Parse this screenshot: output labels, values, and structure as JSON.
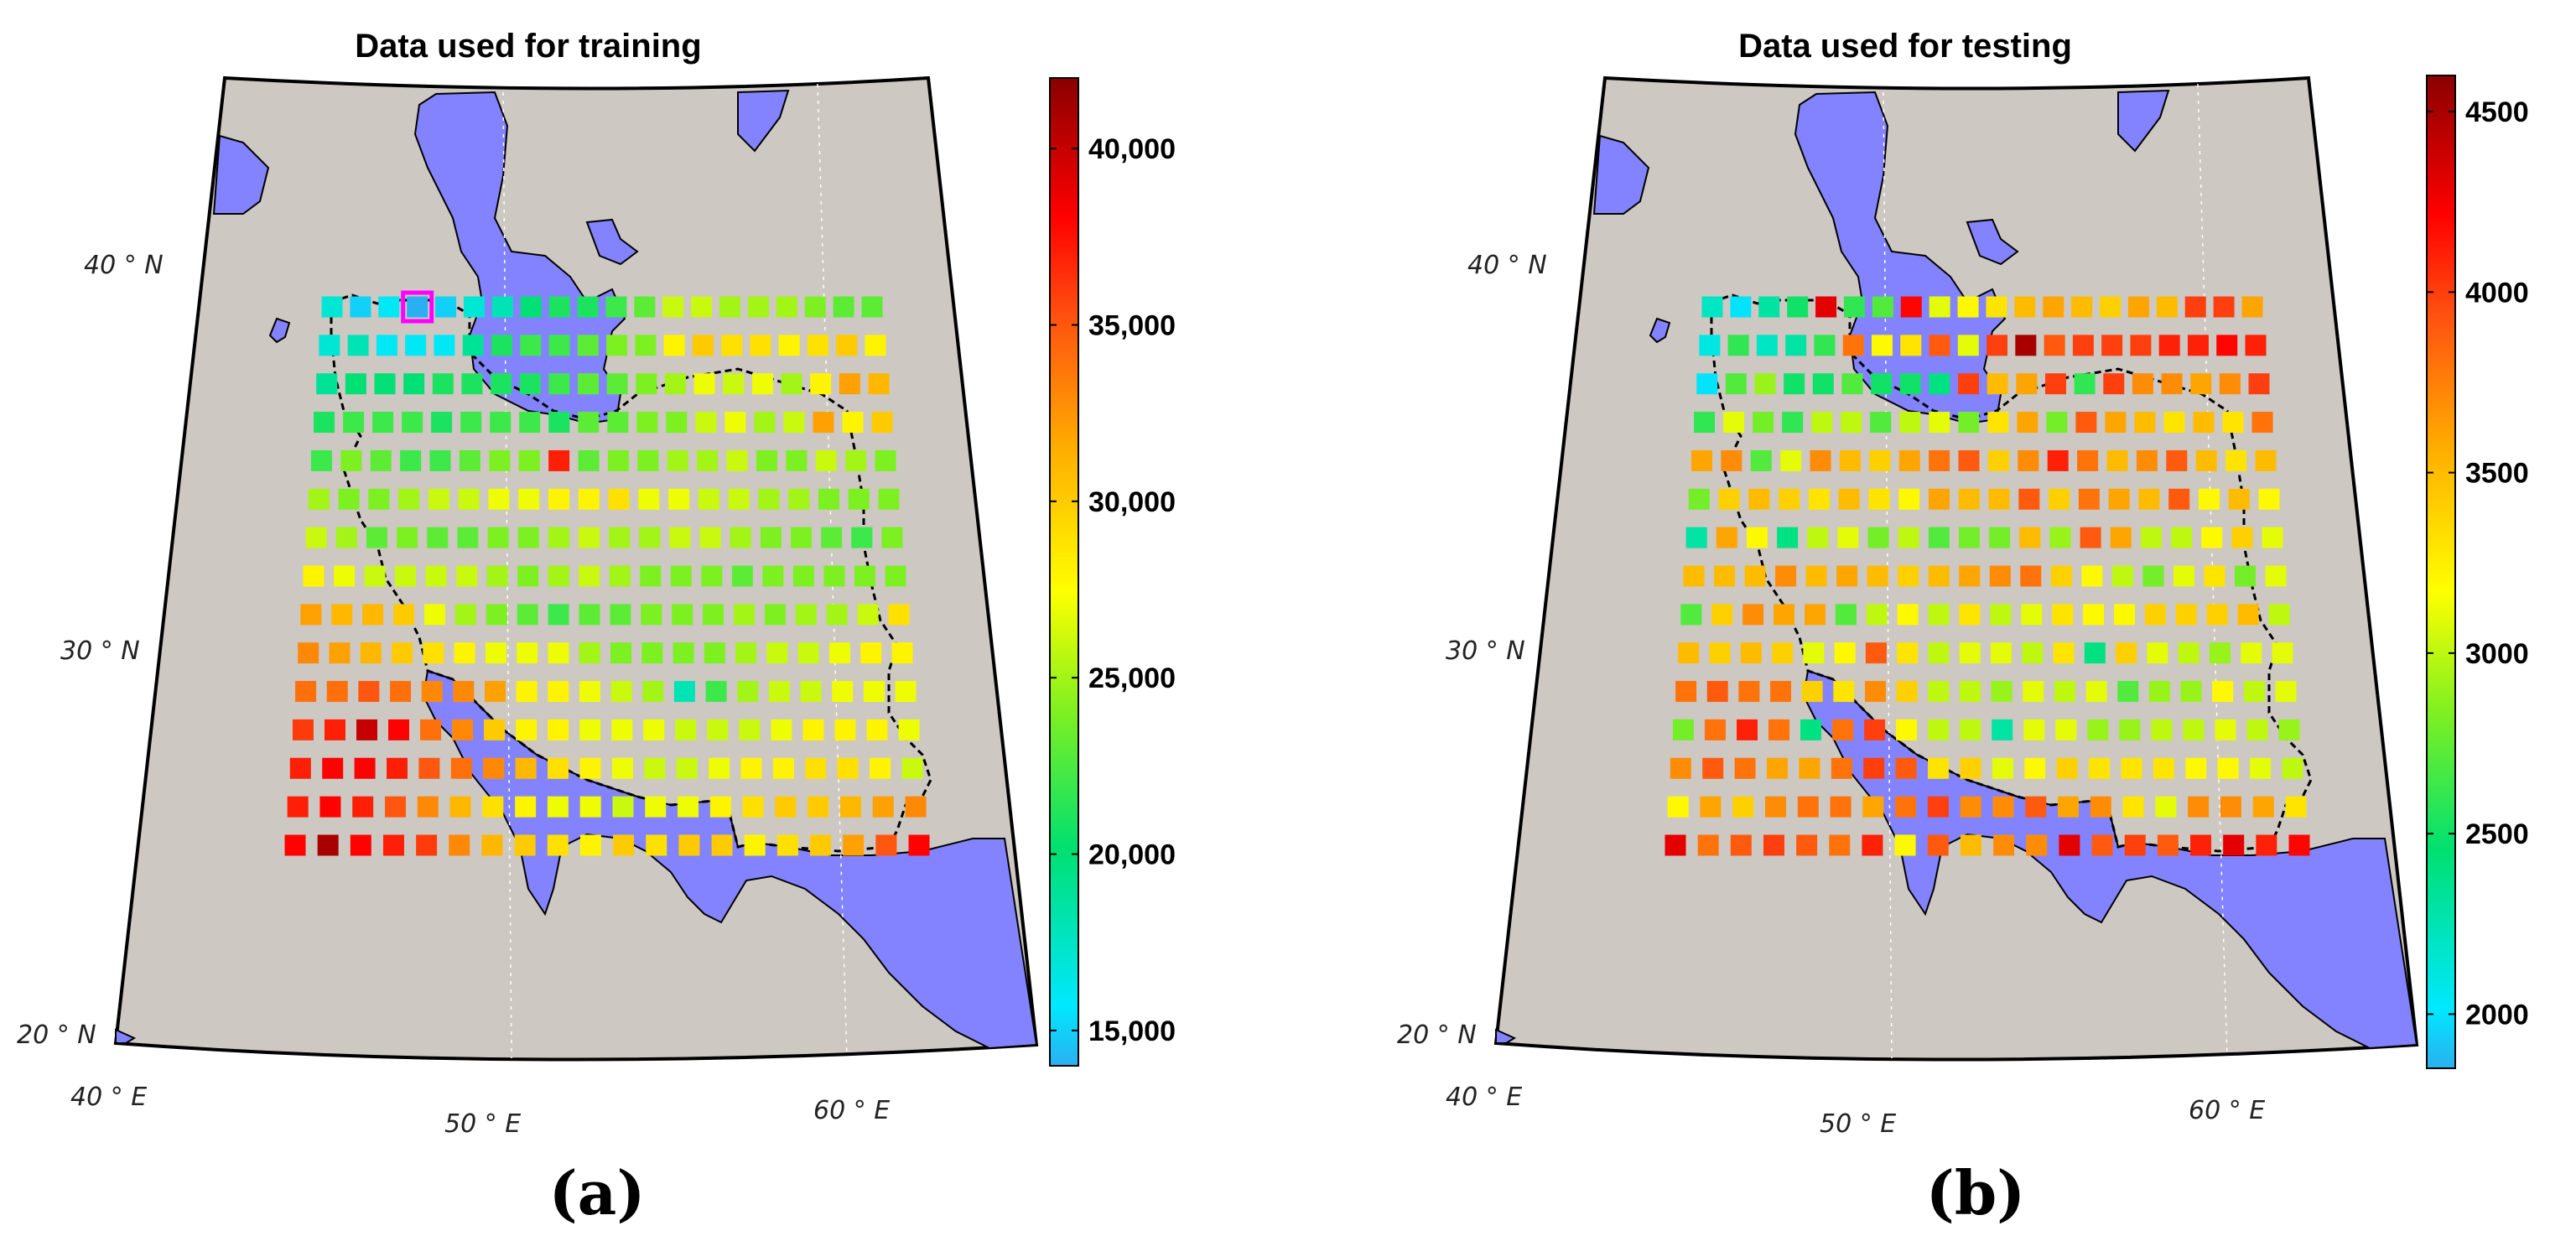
{
  "colors": {
    "land": "#cdc8c2",
    "water": "#8383ff",
    "border": "#000000",
    "highlight": "#ff00ff"
  },
  "panels": [
    {
      "title": "Data used for training",
      "caption": "(a)",
      "lon_labels": [
        "40 ° E",
        "50 ° E",
        "60 ° E"
      ],
      "lat_labels": [
        "40 ° N",
        "30 ° N",
        "20 ° N"
      ],
      "colorbar": {
        "min": 14000,
        "max": 42000,
        "tick_labels": [
          "15,000",
          "20,000",
          "25,000",
          "30,000",
          "35,000",
          "40,000"
        ],
        "tick_values": [
          15000,
          20000,
          25000,
          30000,
          35000,
          40000
        ]
      }
    },
    {
      "title": "Data used for testing",
      "caption": "(b)",
      "lon_labels": [
        "40 ° E",
        "50 ° E",
        "60 ° E"
      ],
      "lat_labels": [
        "40 ° N",
        "30 ° N",
        "20 ° N"
      ],
      "colorbar": {
        "min": 1850,
        "max": 4600,
        "tick_labels": [
          "2000",
          "2500",
          "3000",
          "3500",
          "4000",
          "4500"
        ],
        "tick_values": [
          2000,
          2500,
          3000,
          3500,
          4000,
          4500
        ]
      }
    }
  ],
  "chart_data": [
    {
      "type": "heatmap",
      "title": "Data used for training",
      "lon_range": [
        44,
        62
      ],
      "lat_range": [
        25,
        39.5
      ],
      "grid_step_deg": 1,
      "rows_north_to_south": [
        [
          17,
          15,
          16,
          14,
          15,
          17,
          18,
          20,
          21,
          21,
          22,
          23,
          26,
          26,
          25,
          25,
          25,
          24,
          23,
          23
        ],
        [
          17,
          18,
          16,
          16,
          16,
          19,
          21,
          22,
          22,
          23,
          24,
          24,
          28,
          30,
          29,
          29,
          28,
          29,
          30,
          28
        ],
        [
          19,
          20,
          20,
          20,
          21,
          21,
          21,
          21,
          22,
          23,
          23,
          24,
          25,
          27,
          26,
          27,
          25,
          28,
          32,
          31
        ],
        [
          21,
          22,
          22,
          22,
          21,
          22,
          22,
          22,
          21,
          23,
          23,
          24,
          24,
          26,
          27,
          25,
          26,
          32,
          28,
          30
        ],
        [
          22,
          24,
          23,
          22,
          22,
          23,
          24,
          24,
          37,
          23,
          24,
          24,
          25,
          25,
          26,
          24,
          24,
          26,
          25,
          24
        ],
        [
          25,
          24,
          24,
          25,
          26,
          26,
          27,
          27,
          28,
          28,
          29,
          27,
          27,
          26,
          26,
          25,
          25,
          24,
          24,
          24
        ],
        [
          26,
          25,
          23,
          24,
          23,
          23,
          24,
          24,
          25,
          26,
          25,
          25,
          26,
          26,
          25,
          24,
          24,
          23,
          22,
          24
        ],
        [
          28,
          27,
          26,
          26,
          26,
          26,
          25,
          24,
          25,
          26,
          25,
          24,
          24,
          24,
          23,
          24,
          24,
          24,
          24,
          24
        ],
        [
          32,
          31,
          31,
          30,
          27,
          25,
          24,
          23,
          22,
          23,
          23,
          24,
          24,
          24,
          25,
          24,
          25,
          25,
          26,
          29
        ],
        [
          33,
          32,
          31,
          30,
          29,
          28,
          27,
          27,
          27,
          25,
          24,
          24,
          24,
          24,
          25,
          26,
          26,
          27,
          28,
          28
        ],
        [
          34,
          34,
          35,
          34,
          33,
          33,
          32,
          28,
          28,
          27,
          26,
          25,
          18,
          22,
          25,
          26,
          26,
          27,
          27,
          27
        ],
        [
          36,
          37,
          40,
          38,
          34,
          33,
          30,
          28,
          28,
          27,
          27,
          27,
          26,
          26,
          26,
          27,
          28,
          28,
          28,
          27
        ],
        [
          37,
          38,
          38,
          37,
          35,
          34,
          33,
          31,
          29,
          28,
          27,
          26,
          26,
          27,
          28,
          28,
          29,
          29,
          28,
          26
        ],
        [
          37,
          38,
          37,
          35,
          33,
          31,
          29,
          28,
          27,
          27,
          26,
          27,
          27,
          28,
          29,
          30,
          30,
          31,
          32,
          33
        ],
        [
          38,
          41,
          38,
          37,
          36,
          33,
          31,
          30,
          29,
          28,
          30,
          29,
          30,
          30,
          28,
          29,
          30,
          32,
          35,
          38
        ]
      ],
      "colorbar_range": [
        14000,
        42000
      ],
      "value_units_in_rows": "thousands"
    },
    {
      "type": "heatmap",
      "title": "Data used for testing",
      "lon_range": [
        44,
        62
      ],
      "lat_range": [
        25,
        39.5
      ],
      "grid_step_deg": 1,
      "rows_north_to_south": [
        [
          2.2,
          2.0,
          2.3,
          2.5,
          4.3,
          2.6,
          2.7,
          4.2,
          3.1,
          3.2,
          3.3,
          3.5,
          3.6,
          3.5,
          3.4,
          3.6,
          3.5,
          4.0,
          4.0,
          3.6
        ],
        [
          2.1,
          2.6,
          2.2,
          2.3,
          2.6,
          3.8,
          3.2,
          3.3,
          3.9,
          3.1,
          4.0,
          4.5,
          3.9,
          4.0,
          4.0,
          4.0,
          4.1,
          4.1,
          4.2,
          4.1
        ],
        [
          2.0,
          2.7,
          2.9,
          2.5,
          2.5,
          2.7,
          2.5,
          2.5,
          2.4,
          4.0,
          3.5,
          3.6,
          4.0,
          2.6,
          4.0,
          3.7,
          3.7,
          3.6,
          3.7,
          4.0
        ],
        [
          2.6,
          3.1,
          2.8,
          2.6,
          3.0,
          3.0,
          2.7,
          3.0,
          3.1,
          2.8,
          3.3,
          3.6,
          2.8,
          3.9,
          3.6,
          3.5,
          3.3,
          3.5,
          3.3,
          3.8
        ],
        [
          3.6,
          3.7,
          2.7,
          3.1,
          3.7,
          3.5,
          3.4,
          3.6,
          3.8,
          3.9,
          3.4,
          3.7,
          4.1,
          3.8,
          3.5,
          3.7,
          3.9,
          3.5,
          3.3,
          3.5
        ],
        [
          2.8,
          3.4,
          3.5,
          3.4,
          3.3,
          3.5,
          3.3,
          3.2,
          3.6,
          3.5,
          3.5,
          3.9,
          3.4,
          3.8,
          3.6,
          3.5,
          3.9,
          3.2,
          3.5,
          3.2
        ],
        [
          2.3,
          3.6,
          3.2,
          2.4,
          3.0,
          3.1,
          2.8,
          3.0,
          2.7,
          2.8,
          2.8,
          3.5,
          2.9,
          3.9,
          3.6,
          3.0,
          3.0,
          3.2,
          3.4,
          3.1
        ],
        [
          3.5,
          3.5,
          3.5,
          3.7,
          3.5,
          3.6,
          3.5,
          3.4,
          3.5,
          3.6,
          3.7,
          3.8,
          3.4,
          3.2,
          3.0,
          2.8,
          3.1,
          3.3,
          2.8,
          3.1
        ],
        [
          2.7,
          3.4,
          3.7,
          3.6,
          3.6,
          2.7,
          3.0,
          3.2,
          3.0,
          3.3,
          3.0,
          3.1,
          3.3,
          3.2,
          3.2,
          3.4,
          3.4,
          3.4,
          3.5,
          3.0
        ],
        [
          3.5,
          3.4,
          3.5,
          3.4,
          3.1,
          3.2,
          3.9,
          3.3,
          3.0,
          3.1,
          3.1,
          3.0,
          3.3,
          2.4,
          3.4,
          3.1,
          3.0,
          2.9,
          3.1,
          3.1
        ],
        [
          3.8,
          3.9,
          3.8,
          3.8,
          3.4,
          3.3,
          3.7,
          3.4,
          3.0,
          3.0,
          2.9,
          3.1,
          3.0,
          3.1,
          2.7,
          2.9,
          2.9,
          3.2,
          3.0,
          3.1
        ],
        [
          2.8,
          3.8,
          4.1,
          3.8,
          2.4,
          3.8,
          4.0,
          3.2,
          3.0,
          3.0,
          2.3,
          3.1,
          3.1,
          2.9,
          2.9,
          3.0,
          3.0,
          3.1,
          3.0,
          2.9
        ],
        [
          3.7,
          3.9,
          3.8,
          3.6,
          3.6,
          3.8,
          4.0,
          3.9,
          3.3,
          3.4,
          3.1,
          3.2,
          3.4,
          3.3,
          3.3,
          3.3,
          3.2,
          3.2,
          3.1,
          3.0
        ],
        [
          3.2,
          3.6,
          3.4,
          3.7,
          3.8,
          3.8,
          3.6,
          3.8,
          4.0,
          3.7,
          3.7,
          3.9,
          3.6,
          3.7,
          3.3,
          3.1,
          3.7,
          3.7,
          3.6,
          3.3
        ],
        [
          4.3,
          3.8,
          3.9,
          4.0,
          3.9,
          3.8,
          4.1,
          3.2,
          3.9,
          3.5,
          3.7,
          3.7,
          4.3,
          3.9,
          4.0,
          3.9,
          4.1,
          4.3,
          4.1,
          4.2
        ]
      ],
      "colorbar_range": [
        1850,
        4600
      ],
      "value_units_in_rows": "thousands"
    }
  ]
}
